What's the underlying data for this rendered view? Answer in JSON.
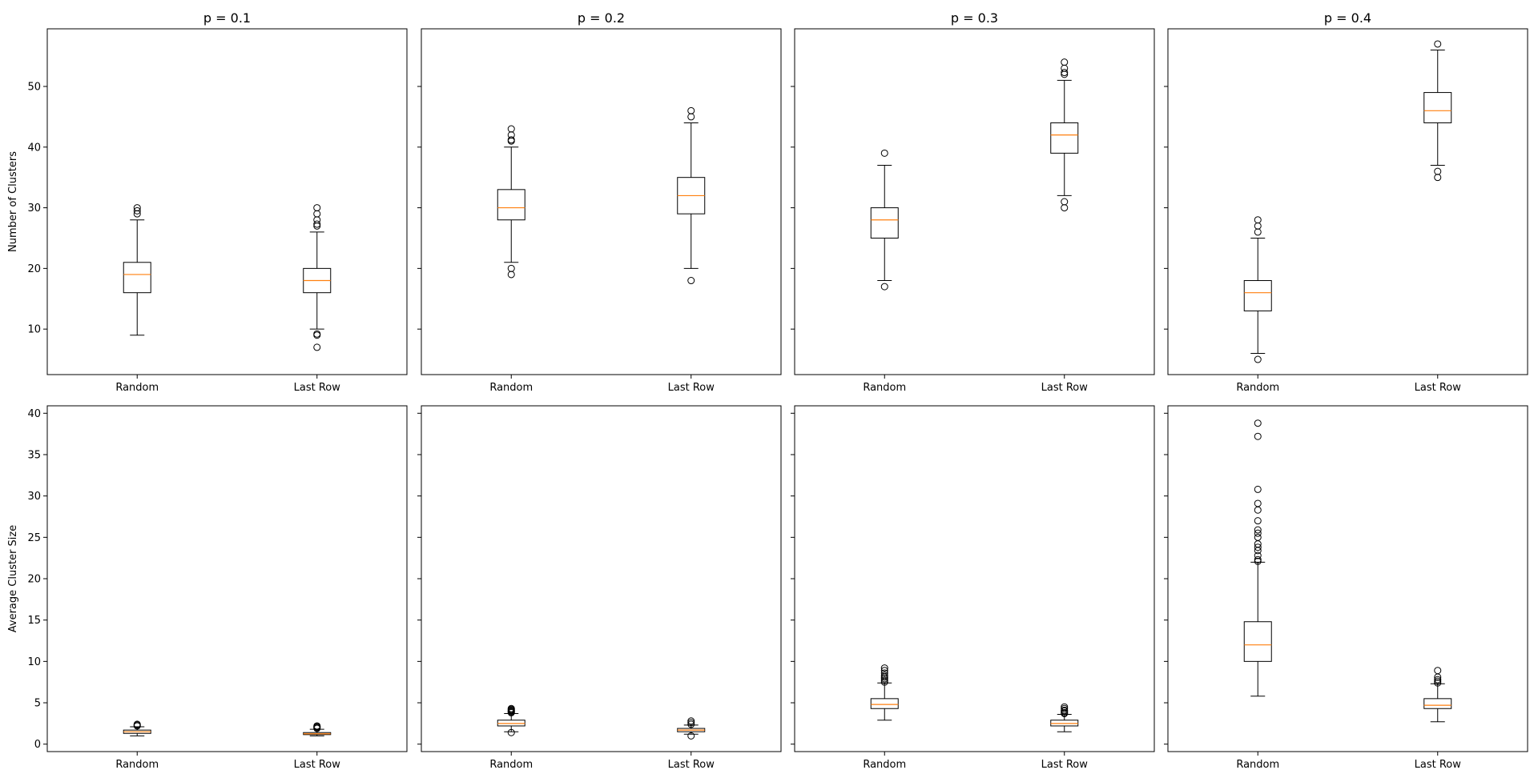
{
  "colors": {
    "median": "#ff7f0e",
    "box": "#000000",
    "flier": "#000000",
    "background": "#ffffff"
  },
  "rows": [
    {
      "ylabel": "Number of Clusters",
      "ylim": [
        2.5,
        59.5
      ],
      "yticks": [
        10,
        20,
        30,
        40,
        50
      ]
    },
    {
      "ylabel": "Average Cluster Size",
      "ylim": [
        -0.9,
        40.9
      ],
      "yticks": [
        0,
        5,
        10,
        15,
        20,
        25,
        30,
        35,
        40
      ]
    }
  ],
  "chart_data": [
    {
      "type": "box",
      "row": 0,
      "col": 0,
      "title": "p = 0.1",
      "ylabel": "Number of Clusters",
      "categories": [
        "Random",
        "Last Row"
      ],
      "ylim": [
        2.5,
        59.5
      ],
      "sharey": true,
      "boxes": [
        {
          "label": "Random",
          "whislo": 9,
          "q1": 16,
          "med": 19,
          "q3": 21,
          "whishi": 28,
          "fliers": [
            29,
            29.5,
            30
          ]
        },
        {
          "label": "Last Row",
          "whislo": 10,
          "q1": 16,
          "med": 18,
          "q3": 20,
          "whishi": 26,
          "fliers": [
            7,
            9,
            9.2,
            27,
            27.3,
            28,
            29,
            30
          ]
        }
      ]
    },
    {
      "type": "box",
      "row": 0,
      "col": 1,
      "title": "p = 0.2",
      "ylabel": "",
      "categories": [
        "Random",
        "Last Row"
      ],
      "ylim": [
        2.5,
        59.5
      ],
      "sharey": true,
      "boxes": [
        {
          "label": "Random",
          "whislo": 21,
          "q1": 28,
          "med": 30,
          "q3": 33,
          "whishi": 40,
          "fliers": [
            19,
            20,
            41,
            41.2,
            42,
            43
          ]
        },
        {
          "label": "Last Row",
          "whislo": 20,
          "q1": 29,
          "med": 32,
          "q3": 35,
          "whishi": 44,
          "fliers": [
            18,
            45,
            46
          ]
        }
      ]
    },
    {
      "type": "box",
      "row": 0,
      "col": 2,
      "title": "p = 0.3",
      "ylabel": "",
      "categories": [
        "Random",
        "Last Row"
      ],
      "ylim": [
        2.5,
        59.5
      ],
      "sharey": true,
      "boxes": [
        {
          "label": "Random",
          "whislo": 18,
          "q1": 25,
          "med": 28,
          "q3": 30,
          "whishi": 37,
          "fliers": [
            17,
            39
          ]
        },
        {
          "label": "Last Row",
          "whislo": 32,
          "q1": 39,
          "med": 42,
          "q3": 44,
          "whishi": 51,
          "fliers": [
            30,
            31,
            52,
            52.3,
            53,
            54
          ]
        }
      ]
    },
    {
      "type": "box",
      "row": 0,
      "col": 3,
      "title": "p = 0.4",
      "ylabel": "",
      "categories": [
        "Random",
        "Last Row"
      ],
      "ylim": [
        2.5,
        59.5
      ],
      "sharey": true,
      "boxes": [
        {
          "label": "Random",
          "whislo": 6,
          "q1": 13,
          "med": 16,
          "q3": 18,
          "whishi": 25,
          "fliers": [
            5,
            26,
            27,
            28
          ]
        },
        {
          "label": "Last Row",
          "whislo": 37,
          "q1": 44,
          "med": 46,
          "q3": 49,
          "whishi": 56,
          "fliers": [
            35,
            36,
            57
          ]
        }
      ]
    },
    {
      "type": "box",
      "row": 1,
      "col": 0,
      "title": "",
      "ylabel": "Average Cluster Size",
      "categories": [
        "Random",
        "Last Row"
      ],
      "ylim": [
        -0.9,
        40.9
      ],
      "sharey": true,
      "boxes": [
        {
          "label": "Random",
          "whislo": 1.0,
          "q1": 1.3,
          "med": 1.5,
          "q3": 1.7,
          "whishi": 2.1,
          "fliers": [
            2.2,
            2.3,
            2.4
          ]
        },
        {
          "label": "Last Row",
          "whislo": 1.0,
          "q1": 1.15,
          "med": 1.25,
          "q3": 1.4,
          "whishi": 1.8,
          "fliers": [
            1.9,
            2.0,
            2.1,
            2.2
          ]
        }
      ]
    },
    {
      "type": "box",
      "row": 1,
      "col": 1,
      "title": "",
      "ylabel": "",
      "categories": [
        "Random",
        "Last Row"
      ],
      "ylim": [
        -0.9,
        40.9
      ],
      "sharey": true,
      "boxes": [
        {
          "label": "Random",
          "whislo": 1.5,
          "q1": 2.2,
          "med": 2.5,
          "q3": 2.9,
          "whishi": 3.7,
          "fliers": [
            1.4,
            3.8,
            3.9,
            4.0,
            4.1,
            4.2,
            4.3
          ]
        },
        {
          "label": "Last Row",
          "whislo": 1.2,
          "q1": 1.5,
          "med": 1.7,
          "q3": 1.9,
          "whishi": 2.3,
          "fliers": [
            1.0,
            2.4,
            2.6,
            2.8
          ]
        }
      ]
    },
    {
      "type": "box",
      "row": 1,
      "col": 2,
      "title": "",
      "ylabel": "",
      "categories": [
        "Random",
        "Last Row"
      ],
      "ylim": [
        -0.9,
        40.9
      ],
      "sharey": true,
      "boxes": [
        {
          "label": "Random",
          "whislo": 2.9,
          "q1": 4.3,
          "med": 4.8,
          "q3": 5.5,
          "whishi": 7.4,
          "fliers": [
            7.5,
            7.7,
            7.9,
            8.1,
            8.3,
            8.6,
            8.9,
            9.2
          ]
        },
        {
          "label": "Last Row",
          "whislo": 1.5,
          "q1": 2.2,
          "med": 2.5,
          "q3": 2.9,
          "whishi": 3.6,
          "fliers": [
            3.7,
            3.8,
            4.0,
            4.1,
            4.3,
            4.5
          ]
        }
      ]
    },
    {
      "type": "box",
      "row": 1,
      "col": 3,
      "title": "",
      "ylabel": "",
      "categories": [
        "Random",
        "Last Row"
      ],
      "ylim": [
        -0.9,
        40.9
      ],
      "sharey": true,
      "boxes": [
        {
          "label": "Random",
          "whislo": 5.8,
          "q1": 10.0,
          "med": 12.0,
          "q3": 14.8,
          "whishi": 22.0,
          "fliers": [
            22.1,
            22.3,
            22.8,
            23.4,
            23.8,
            24.2,
            25.0,
            25.5,
            25.9,
            27.0,
            28.3,
            29.1,
            30.8,
            37.2,
            38.8
          ]
        },
        {
          "label": "Last Row",
          "whislo": 2.7,
          "q1": 4.3,
          "med": 4.7,
          "q3": 5.5,
          "whishi": 7.3,
          "fliers": [
            7.4,
            7.6,
            7.8,
            8.1,
            8.9
          ]
        }
      ]
    }
  ]
}
